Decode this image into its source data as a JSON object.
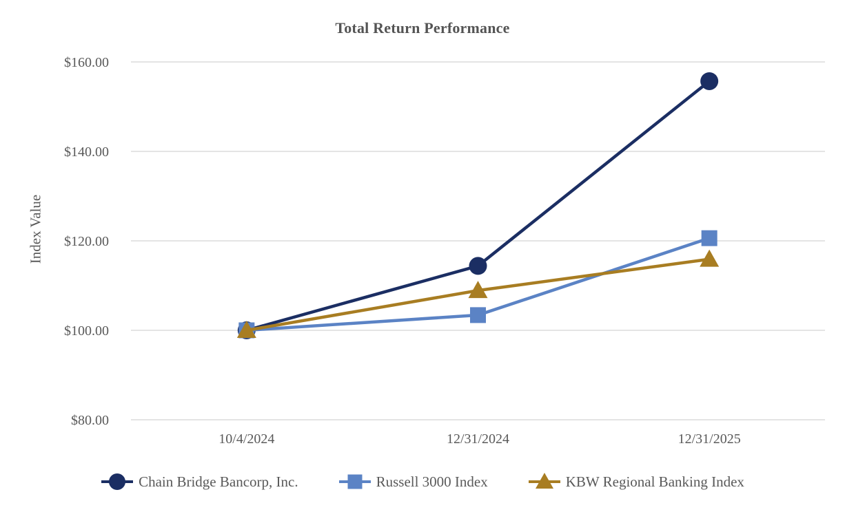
{
  "chart_data": {
    "type": "line",
    "title": "Total Return Performance",
    "ylabel": "Index Value",
    "xlabel": "",
    "categories": [
      "10/4/2024",
      "12/31/2024",
      "12/31/2025"
    ],
    "series": [
      {
        "name": "Chain Bridge Bancorp, Inc.",
        "marker": "circle",
        "color": "#1B2E63",
        "values": [
          100.0,
          114.4,
          155.7
        ]
      },
      {
        "name": "Russell 3000 Index",
        "marker": "square",
        "color": "#5B83C5",
        "values": [
          100.0,
          103.4,
          120.6
        ]
      },
      {
        "name": "KBW Regional Banking Index",
        "marker": "triangle",
        "color": "#A87D22",
        "values": [
          100.0,
          108.9,
          115.9
        ]
      }
    ],
    "yticks": [
      80,
      100,
      120,
      140,
      160
    ],
    "ytick_labels": [
      "$80.00",
      "$100.00",
      "$120.00",
      "$140.00",
      "$160.00"
    ],
    "ylim": [
      80,
      160
    ],
    "grid": "horizontal",
    "legend_position": "bottom",
    "colors": {
      "text": "#595959",
      "title": "#545454",
      "gridline": "#DCDCDC",
      "background": "#FFFFFF"
    }
  }
}
